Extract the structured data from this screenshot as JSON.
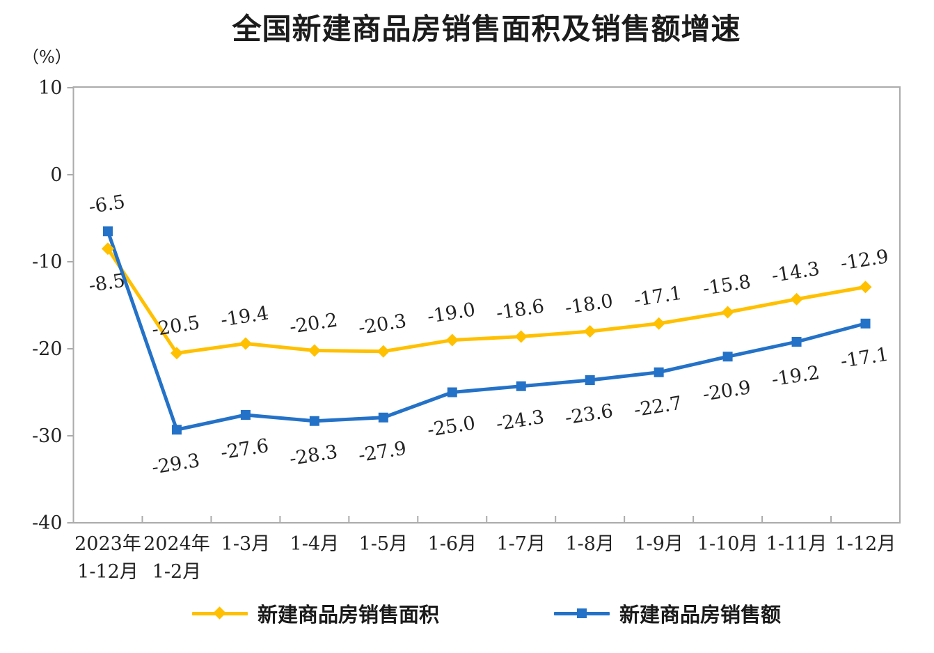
{
  "title": "全国新建商品房销售面积及销售额增速",
  "y_axis_unit": "（%）",
  "chart_data": {
    "type": "line",
    "categories": [
      "2023年\n1-12月",
      "2024年\n1-2月",
      "1-3月",
      "1-4月",
      "1-5月",
      "1-6月",
      "1-7月",
      "1-8月",
      "1-9月",
      "1-10月",
      "1-11月",
      "1-12月"
    ],
    "series": [
      {
        "name": "新建商品房销售面积",
        "color": "#FFC000",
        "marker": "diamond",
        "values": [
          -8.5,
          -20.5,
          -19.4,
          -20.2,
          -20.3,
          -19.0,
          -18.6,
          -18.0,
          -17.1,
          -15.8,
          -14.3,
          -12.9
        ]
      },
      {
        "name": "新建商品房销售额",
        "color": "#2472C8",
        "marker": "square",
        "values": [
          -6.5,
          -29.3,
          -27.6,
          -28.3,
          -27.9,
          -25.0,
          -24.3,
          -23.6,
          -22.7,
          -20.9,
          -19.2,
          -17.1
        ]
      }
    ],
    "ylim": [
      -40,
      10
    ],
    "y_ticks": [
      10,
      0,
      -10,
      -20,
      -30,
      -40
    ],
    "xlabel": "",
    "ylabel": "（%）",
    "grid": false,
    "legend_position": "bottom",
    "axis_color": "#ababab",
    "label_color": "#222222"
  }
}
